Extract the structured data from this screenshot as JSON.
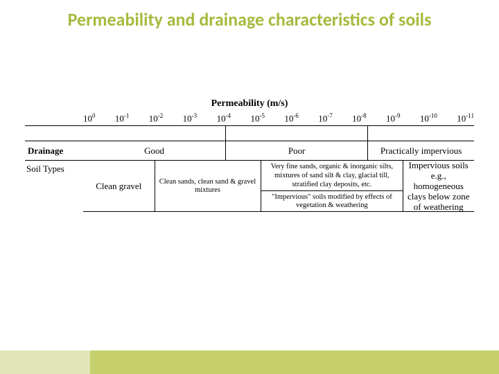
{
  "title": "Permeability and drainage characteristics of soils",
  "permHeader": "Permeability (m/s)",
  "exponents": [
    "0",
    "-1",
    "-2",
    "-3",
    "-4",
    "-5",
    "-6",
    "-7",
    "-8",
    "-9",
    "-10",
    "-11"
  ],
  "drainageLabel": "Drainage",
  "drainage": {
    "good": "Good",
    "poor": "Poor",
    "impervious": "Practically impervious"
  },
  "soilLabel": "Soil Types",
  "soils": {
    "cleanGravel": "Clean gravel",
    "cleanSands": "Clean sands, clean sand & gravel mixtures",
    "veryFine": "Very fine sands, organic & inorganic silts, mixtures of sand silt & clay, glacial till, stratified clay deposits, etc.",
    "modified": "\"Impervious\" soils modified by effects of vegetation & weathering",
    "impervious": "Impervious soils e.g., homogeneous clays below zone of weathering"
  },
  "layout": {
    "nTicks": 12,
    "drainageBreak1": 4,
    "drainageBreak2": 8,
    "gravelEnd": 2,
    "sandsEnd": 5,
    "fineEnd": 9,
    "modStart": 5,
    "modEnd": 9
  },
  "colors": {
    "title": "#a6ba3e",
    "line": "#000000",
    "footerA": "#e1e6b9",
    "footerB": "#c5d06a",
    "background": "#ffffff"
  },
  "fonts": {
    "titleSize": 26,
    "bodySize": 13,
    "smallSize": 10.5
  }
}
